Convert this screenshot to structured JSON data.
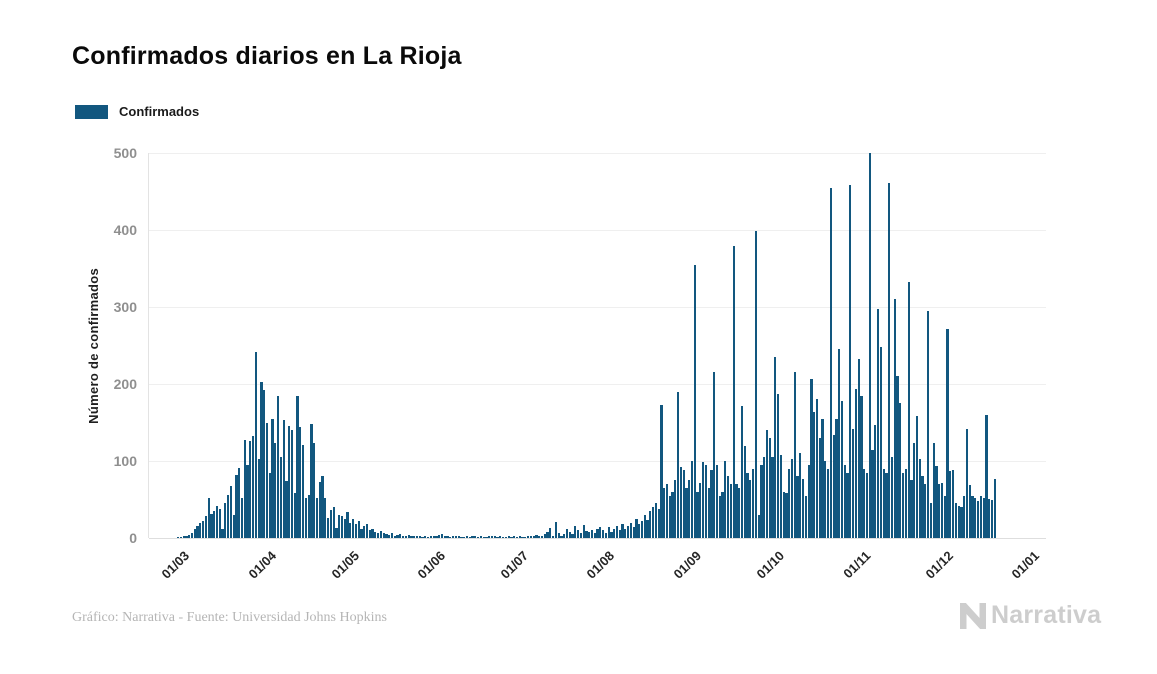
{
  "title": "Confirmados diarios en La Rioja",
  "legend": {
    "label": "Confirmados",
    "color": "#12577F"
  },
  "footer": {
    "credit": "Gráfico: Narrativa - Fuente: Universidad Johns Hopkins"
  },
  "logo": {
    "text": "Narrativa"
  },
  "chart_data": {
    "type": "bar",
    "title": "Confirmados diarios en La Rioja",
    "series_name": "Confirmados",
    "xlabel": "",
    "ylabel": "Número de confirmados",
    "ylim": [
      0,
      500
    ],
    "y_ticks": [
      0,
      100,
      200,
      300,
      400,
      500
    ],
    "grid": true,
    "legend_position": "top-left",
    "bar_color": "#12577F",
    "grid_color": "#efefef",
    "x_tick_labels": [
      "01/03",
      "01/04",
      "01/05",
      "01/06",
      "01/07",
      "01/08",
      "01/09",
      "01/10",
      "01/11",
      "01/12",
      "01/01"
    ],
    "x_tick_day_offsets": [
      0,
      31,
      61,
      92,
      122,
      153,
      184,
      214,
      245,
      275,
      306
    ],
    "x_total_days": 306,
    "first_day_label": "01/03",
    "values": [
      1,
      1,
      2,
      3,
      4,
      7,
      12,
      16,
      19,
      22,
      28,
      52,
      31,
      35,
      41,
      38,
      12,
      45,
      56,
      68,
      30,
      82,
      91,
      52,
      127,
      95,
      126,
      133,
      242,
      103,
      203,
      192,
      150,
      84,
      155,
      123,
      184,
      105,
      153,
      74,
      146,
      140,
      59,
      184,
      144,
      121,
      52,
      56,
      148,
      123,
      52,
      73,
      81,
      52,
      26,
      36,
      40,
      13,
      30,
      28,
      25,
      34,
      20,
      25,
      18,
      22,
      12,
      15,
      18,
      10,
      12,
      8,
      6,
      9,
      7,
      5,
      4,
      6,
      3,
      4,
      5,
      3,
      2,
      4,
      3,
      2,
      3,
      2,
      1,
      2,
      1,
      2,
      3,
      2,
      4,
      5,
      3,
      2,
      1,
      2,
      3,
      2,
      1,
      1,
      2,
      1,
      3,
      2,
      1,
      2,
      1,
      1,
      2,
      3,
      2,
      1,
      2,
      1,
      1,
      2,
      1,
      2,
      1,
      2,
      1,
      1,
      2,
      3,
      2,
      4,
      3,
      2,
      5,
      8,
      13,
      2,
      21,
      6,
      3,
      5,
      12,
      8,
      5,
      15,
      10,
      6,
      17,
      9,
      8,
      10,
      6,
      12,
      14,
      10,
      6,
      14,
      8,
      12,
      16,
      10,
      18,
      12,
      15,
      20,
      14,
      25,
      18,
      22,
      30,
      24,
      35,
      40,
      45,
      38,
      173,
      65,
      70,
      55,
      60,
      75,
      190,
      92,
      88,
      65,
      75,
      100,
      355,
      60,
      72,
      99,
      95,
      65,
      88,
      216,
      95,
      55,
      60,
      100,
      80,
      70,
      379,
      70,
      65,
      172,
      119,
      85,
      75,
      90,
      399,
      30,
      95,
      105,
      140,
      130,
      105,
      235,
      187,
      108,
      60,
      58,
      90,
      102,
      216,
      80,
      110,
      77,
      55,
      95,
      206,
      164,
      181,
      130,
      154,
      100,
      90,
      454,
      134,
      154,
      245,
      178,
      95,
      85,
      459,
      141,
      194,
      232,
      184,
      90,
      85,
      500,
      114,
      147,
      297,
      248,
      90,
      85,
      461,
      105,
      310,
      210,
      175,
      85,
      90,
      333,
      75,
      124,
      158,
      103,
      80,
      70,
      295,
      46,
      123,
      94,
      70,
      71,
      55,
      271,
      87,
      88,
      45,
      42,
      40,
      55,
      142,
      69,
      55,
      52,
      48,
      54,
      52,
      160,
      51,
      50,
      77
    ]
  }
}
